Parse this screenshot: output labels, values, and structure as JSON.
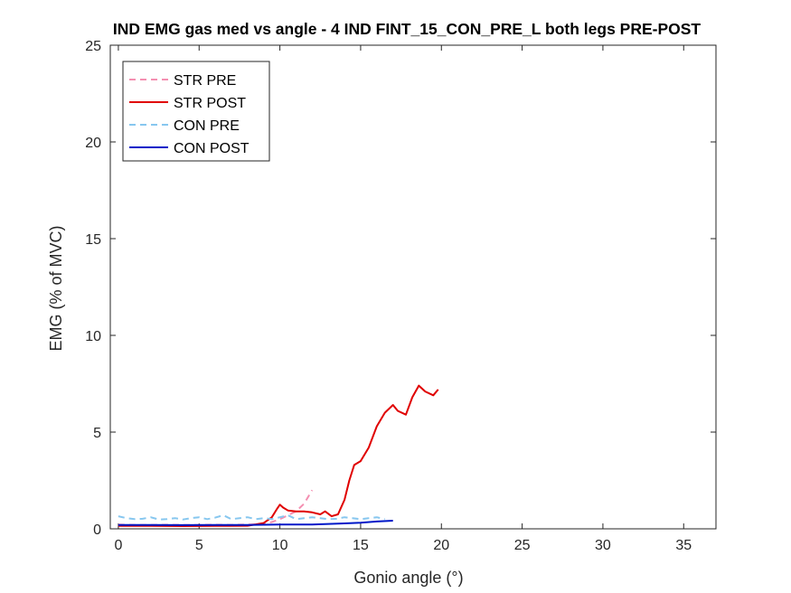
{
  "chart_data": {
    "type": "line",
    "title": "IND EMG gas med vs angle - 4 IND FINT_15_CON_PRE_L both legs PRE-POST",
    "xlabel": "Gonio angle (°)",
    "ylabel": "EMG (% of MVC)",
    "xlim": [
      -0.5,
      37
    ],
    "ylim": [
      0,
      25
    ],
    "xticks": [
      0,
      5,
      10,
      15,
      20,
      25,
      30,
      35
    ],
    "yticks": [
      0,
      5,
      10,
      15,
      20,
      25
    ],
    "grid": false,
    "legend_position": "top-left",
    "series": [
      {
        "name": "STR PRE",
        "color": "#f48fb1",
        "dash": true,
        "x": [
          0,
          1,
          2,
          3,
          4,
          5,
          6,
          7,
          8,
          9,
          9.5,
          10,
          10.5,
          11,
          11.5,
          12
        ],
        "y": [
          0.22,
          0.2,
          0.2,
          0.21,
          0.2,
          0.2,
          0.21,
          0.2,
          0.22,
          0.25,
          0.35,
          0.5,
          0.7,
          0.9,
          1.3,
          2.0
        ]
      },
      {
        "name": "STR POST",
        "color": "#e00000",
        "dash": false,
        "x": [
          0,
          2,
          4,
          6,
          8,
          9,
          9.5,
          9.8,
          10,
          10.2,
          10.5,
          11,
          11.5,
          12,
          12.5,
          12.8,
          13.2,
          13.6,
          14,
          14.3,
          14.6,
          15,
          15.5,
          16,
          16.5,
          17,
          17.3,
          17.8,
          18.2,
          18.6,
          19,
          19.5,
          19.8
        ],
        "y": [
          0.15,
          0.15,
          0.14,
          0.15,
          0.16,
          0.3,
          0.6,
          1.0,
          1.25,
          1.1,
          0.95,
          0.9,
          0.9,
          0.85,
          0.75,
          0.9,
          0.65,
          0.75,
          1.5,
          2.5,
          3.3,
          3.5,
          4.2,
          5.3,
          6.0,
          6.4,
          6.1,
          5.9,
          6.8,
          7.4,
          7.1,
          6.9,
          7.2
        ]
      },
      {
        "name": "CON PRE",
        "color": "#87c7ef",
        "dash": true,
        "x": [
          0,
          0.5,
          1,
          1.5,
          2,
          2.5,
          3,
          3.5,
          4,
          4.5,
          5,
          5.5,
          6,
          6.5,
          7,
          7.5,
          8,
          8.5,
          9,
          9.5,
          10,
          10.5,
          11,
          11.5,
          12,
          12.5,
          13,
          13.5,
          14,
          14.5,
          15,
          15.5,
          16,
          16.5
        ],
        "y": [
          0.65,
          0.55,
          0.5,
          0.52,
          0.6,
          0.48,
          0.5,
          0.55,
          0.48,
          0.55,
          0.6,
          0.5,
          0.58,
          0.7,
          0.5,
          0.55,
          0.6,
          0.5,
          0.55,
          0.5,
          0.6,
          0.7,
          0.5,
          0.55,
          0.6,
          0.55,
          0.5,
          0.52,
          0.6,
          0.55,
          0.5,
          0.55,
          0.6,
          0.5
        ]
      },
      {
        "name": "CON POST",
        "color": "#0018c8",
        "dash": false,
        "x": [
          0,
          2,
          4,
          6,
          8,
          10,
          12,
          13,
          14,
          15,
          16,
          17
        ],
        "y": [
          0.2,
          0.2,
          0.19,
          0.2,
          0.2,
          0.22,
          0.22,
          0.25,
          0.28,
          0.32,
          0.38,
          0.42
        ]
      }
    ]
  }
}
